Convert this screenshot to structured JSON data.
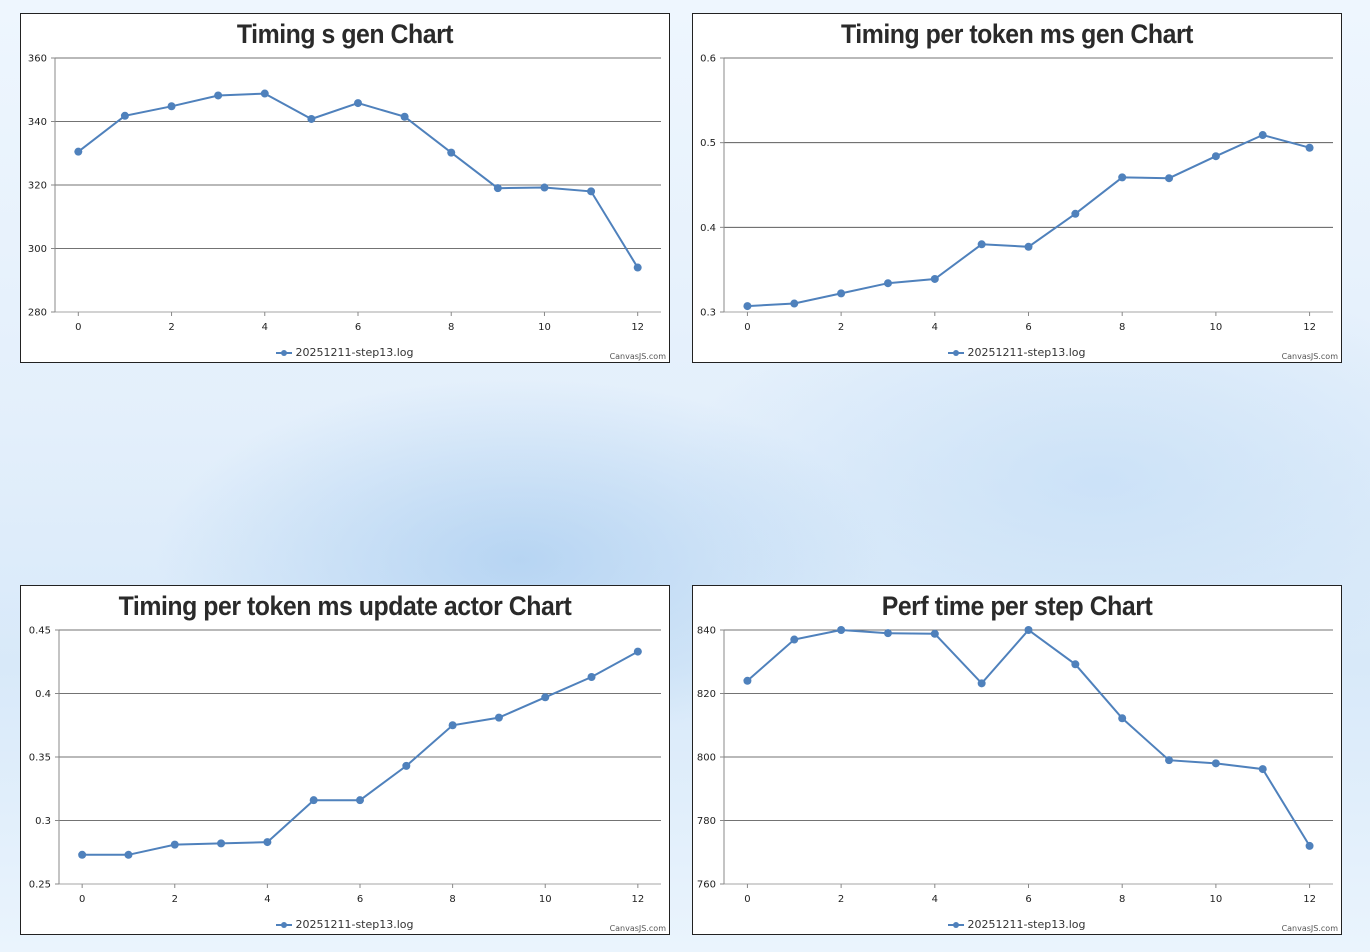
{
  "colors": {
    "series": "#4f81bc",
    "grid": "#444444",
    "axis": "#888888"
  },
  "credit": "CanvasJS.com",
  "chart_data": [
    {
      "type": "line",
      "title": "Timing s gen Chart",
      "series": [
        {
          "name": "20251211-step13.log",
          "x": [
            0,
            1,
            2,
            3,
            4,
            5,
            6,
            7,
            8,
            9,
            10,
            11,
            12
          ],
          "values": [
            330.5,
            341.8,
            344.8,
            348.2,
            348.8,
            340.8,
            345.8,
            341.5,
            330.2,
            319.0,
            319.2,
            318.0,
            294.0
          ]
        }
      ],
      "xlim": [
        -0.5,
        12.5
      ],
      "xticks": [
        0,
        2,
        4,
        6,
        8,
        10,
        12
      ],
      "ylim": [
        280,
        360
      ],
      "yticks": [
        "280",
        "300",
        "320",
        "340",
        "360"
      ],
      "grid": true,
      "legend": "bottom-center"
    },
    {
      "type": "line",
      "title": "Timing per token ms gen Chart",
      "series": [
        {
          "name": "20251211-step13.log",
          "x": [
            0,
            1,
            2,
            3,
            4,
            5,
            6,
            7,
            8,
            9,
            10,
            11,
            12
          ],
          "values": [
            0.307,
            0.31,
            0.322,
            0.334,
            0.339,
            0.38,
            0.377,
            0.416,
            0.459,
            0.458,
            0.484,
            0.509,
            0.494
          ]
        }
      ],
      "xlim": [
        -0.5,
        12.5
      ],
      "xticks": [
        0,
        2,
        4,
        6,
        8,
        10,
        12
      ],
      "ylim": [
        0.3,
        0.6
      ],
      "yticks": [
        "0.3",
        "0.4",
        "0.5",
        "0.6"
      ],
      "grid": true,
      "legend": "bottom-center"
    },
    {
      "type": "line",
      "title": "Timing per token ms update actor Chart",
      "series": [
        {
          "name": "20251211-step13.log",
          "x": [
            0,
            1,
            2,
            3,
            4,
            5,
            6,
            7,
            8,
            9,
            10,
            11,
            12
          ],
          "values": [
            0.273,
            0.273,
            0.281,
            0.282,
            0.283,
            0.316,
            0.316,
            0.343,
            0.375,
            0.381,
            0.397,
            0.413,
            0.433
          ]
        }
      ],
      "xlim": [
        -0.5,
        12.5
      ],
      "xticks": [
        0,
        2,
        4,
        6,
        8,
        10,
        12
      ],
      "ylim": [
        0.25,
        0.45
      ],
      "yticks": [
        "0.25",
        "0.3",
        "0.35",
        "0.4",
        "0.45"
      ],
      "grid": true,
      "legend": "bottom-center"
    },
    {
      "type": "line",
      "title": "Perf time per step Chart",
      "series": [
        {
          "name": "20251211-step13.log",
          "x": [
            0,
            1,
            2,
            3,
            4,
            5,
            6,
            7,
            8,
            9,
            10,
            11,
            12
          ],
          "values": [
            824.0,
            837.0,
            840.0,
            839.0,
            838.8,
            823.2,
            840.0,
            829.2,
            812.2,
            799.0,
            798.0,
            796.2,
            772.0
          ]
        }
      ],
      "xlim": [
        -0.5,
        12.5
      ],
      "xticks": [
        0,
        2,
        4,
        6,
        8,
        10,
        12
      ],
      "ylim": [
        760,
        840
      ],
      "yticks": [
        "760",
        "780",
        "800",
        "820",
        "840"
      ],
      "grid": true,
      "legend": "bottom-center"
    }
  ]
}
